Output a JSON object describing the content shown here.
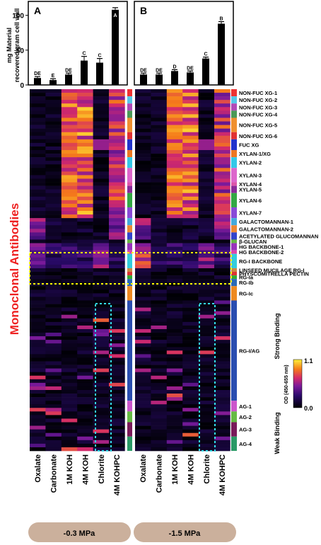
{
  "chart_data": [
    {
      "type": "bar",
      "panel_label": "A",
      "ylabel": "mg Material recovered/gram cell wall",
      "ylim": [
        0,
        120
      ],
      "yticks": [
        0,
        50,
        100
      ],
      "categories": [
        "Oxalate",
        "Carbonate",
        "1M KOH",
        "4M KOH",
        "Chlorite",
        "4M KOHPC"
      ],
      "values": [
        10,
        7,
        15,
        35,
        32,
        108
      ],
      "errors": [
        2,
        2,
        2,
        6,
        6,
        3
      ],
      "letters": [
        "DE",
        "E",
        "DE",
        "C",
        "C",
        "A"
      ]
    },
    {
      "type": "bar",
      "panel_label": "B",
      "ylim": [
        0,
        120
      ],
      "categories": [
        "Oxalate",
        "Carbonate",
        "1M KOH",
        "4M KOH",
        "Chlorite",
        "4M KOHPC"
      ],
      "values": [
        15,
        15,
        20,
        18,
        38,
        88
      ],
      "errors": [
        2,
        2,
        2,
        2,
        2,
        3
      ],
      "letters": [
        "DE",
        "DE",
        "D",
        "DE",
        "C",
        "B"
      ]
    },
    {
      "type": "heatmap",
      "ylabel": "Monoclonal Antibodies",
      "columns": [
        "Oxalate",
        "Carbonate",
        "1M KOH",
        "4M KOH",
        "Chlorite",
        "4M KOHPC"
      ],
      "groups": [
        {
          "label": "-0.3 MPa"
        },
        {
          "label": "-1.5 MPa"
        }
      ],
      "antibody_groups": [
        {
          "label": "NON-FUC XG-1",
          "color": "#ee3333",
          "rows": 2
        },
        {
          "label": "NON-FUC XG-2",
          "color": "#55c8e8",
          "rows": 2
        },
        {
          "label": "NON-FUC XG-3",
          "color": "#b04ab8",
          "rows": 2
        },
        {
          "label": "NON-FUC XG-4",
          "color": "#4a9a58",
          "rows": 2
        },
        {
          "label": "NON-FUC XG-5",
          "color": "#f09030",
          "rows": 4
        },
        {
          "label": "NON-FUC XG-6",
          "color": "#e23232",
          "rows": 2
        },
        {
          "label": "FUC XG",
          "color": "#2233cc",
          "rows": 3
        },
        {
          "label": "XYLAN-1/XG",
          "color": "#ee7722",
          "rows": 2
        },
        {
          "label": "XYLAN-2",
          "color": "#33c8e8",
          "rows": 3
        },
        {
          "label": "XYLAN-3",
          "color": "#dd66cc",
          "rows": 4
        },
        {
          "label": "XYLAN-4",
          "color": "#dd55aa",
          "rows": 1
        },
        {
          "label": "XYLAN-5",
          "color": "#8a2a9a",
          "rows": 2
        },
        {
          "label": "XYLAN-6",
          "color": "#33a844",
          "rows": 4
        },
        {
          "label": "XYLAN-7",
          "color": "#8a4ad8",
          "rows": 3
        },
        {
          "label": "GALACTOMANNAN-1",
          "color": "#44aadd",
          "rows": 2
        },
        {
          "label": "GALACTOMANNAN-2",
          "color": "#ee8833",
          "rows": 2
        },
        {
          "label": "ACETYLATED GLUCOMANNAN",
          "color": "#3344cc",
          "rows": 2
        },
        {
          "label": "β-GLUCAN",
          "color": "#66b844",
          "rows": 1
        },
        {
          "label": "HG BACKBONE-1",
          "color": "#9933bb",
          "rows": 2
        },
        {
          "label": "HG BACKBONE-2",
          "color": "#dd44aa",
          "rows": 1
        },
        {
          "label": "RG-I BACKBONE",
          "color": "#33ccdd",
          "rows": 4
        },
        {
          "label": "LINSEED MUCILAGE RG-I",
          "color": "#cc8844",
          "rows": 1
        },
        {
          "label": "PHYSCOMITRELLA PECTIN",
          "color": "#dd3333",
          "rows": 1
        },
        {
          "label": "RG-Ia",
          "color": "#33aa33",
          "rows": 1
        },
        {
          "label": "RG-Ib",
          "color": "#2a6ab8",
          "rows": 2
        },
        {
          "label": "RG-Ic",
          "color": "#ee8a22",
          "rows": 4
        },
        {
          "label": "RG-I/AG",
          "color": "#2a4db0",
          "rows": 28
        },
        {
          "label": "AG-1",
          "color": "#cc55cc",
          "rows": 3
        },
        {
          "label": "AG-2",
          "color": "#66bb44",
          "rows": 3
        },
        {
          "label": "AG-3",
          "color": "#7a1a5a",
          "rows": 4
        },
        {
          "label": "AG-4",
          "color": "#2a9a66",
          "rows": 4
        }
      ],
      "colorbar": {
        "title": "OD (450-655 nm)",
        "top_label": "Strong Binding",
        "bottom_label": "Weak Binding",
        "max_label": "1.1",
        "min_label": "0.0",
        "vmin": 0.0,
        "vmax": 1.1
      }
    }
  ]
}
